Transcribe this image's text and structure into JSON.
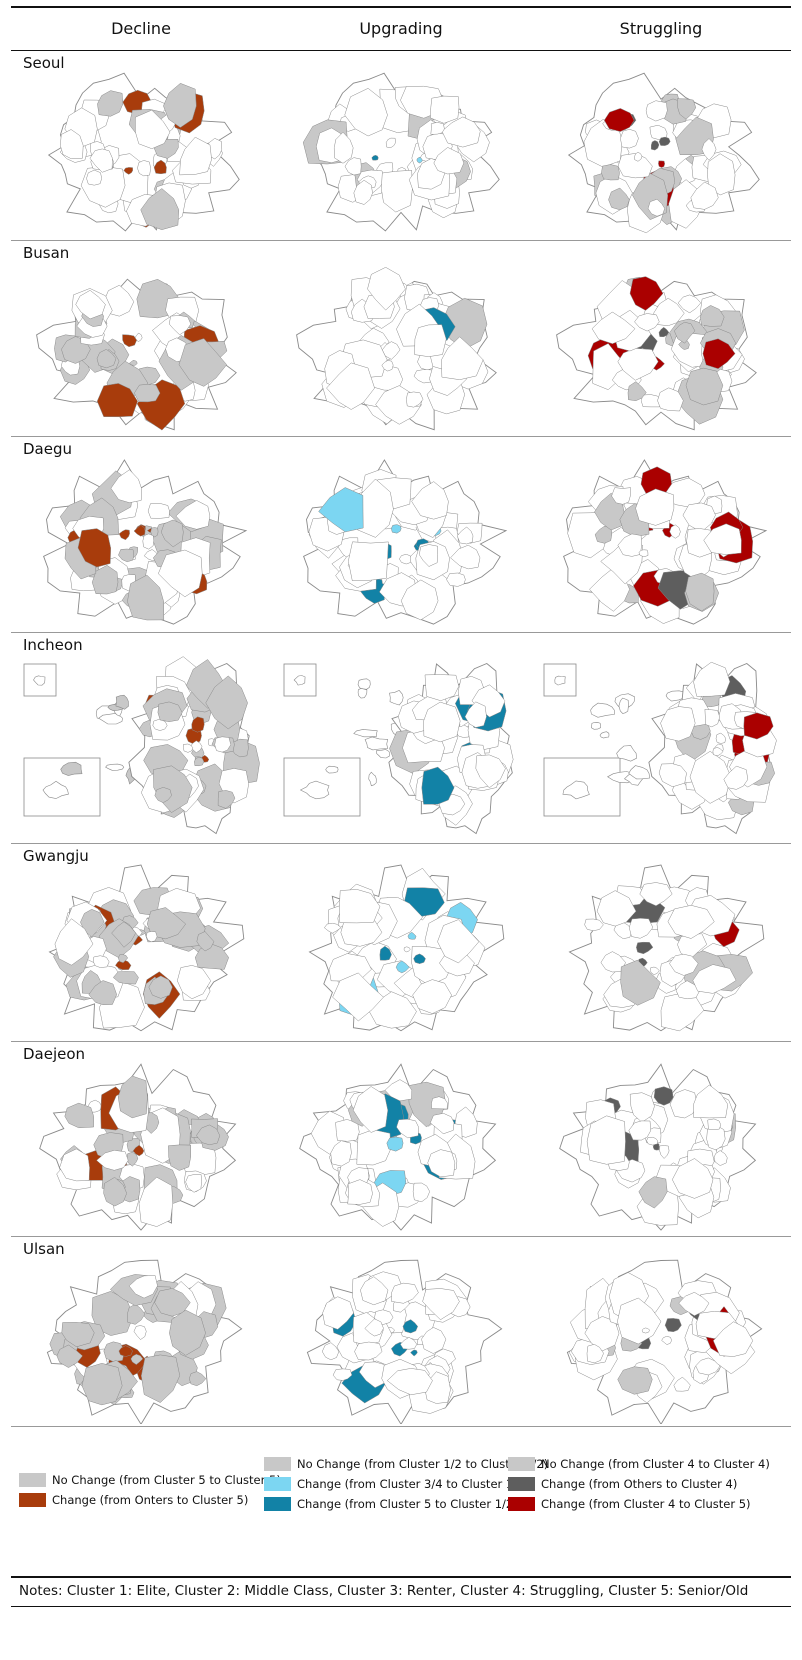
{
  "headers": [
    "Decline",
    "Upgrading",
    "Struggling"
  ],
  "cities": [
    "Seoul",
    "Busan",
    "Daegu",
    "Incheon",
    "Gwangju",
    "Daejeon",
    "Ulsan"
  ],
  "colors": {
    "gray": "#c8c8c8",
    "dark_gray": "#5e5e5e",
    "brown": "#a83c0c",
    "light_blue": "#7cd6f2",
    "teal": "#1282a6",
    "red": "#aa0000",
    "outline": "#8a8a8a"
  },
  "legend": {
    "decline": [
      {
        "label": "No Change (from Cluster 5 to Cluster 5)",
        "color": "#c8c8c8"
      },
      {
        "label": "Change (from Onters to Cluster 5)",
        "color": "#a83c0c"
      }
    ],
    "upgrading": [
      {
        "label": "No Change (from Cluster 1/2 to Cluster 1/2)",
        "color": "#c8c8c8"
      },
      {
        "label": "Change (from Cluster 3/4 to Cluster 1/2)",
        "color": "#7cd6f2"
      },
      {
        "label": "Change (from Cluster 5 to Cluster 1/2)",
        "color": "#1282a6"
      }
    ],
    "struggling": [
      {
        "label": "No Change (from Cluster 4 to Cluster 4)",
        "color": "#c8c8c8"
      },
      {
        "label": "Change (from Others to Cluster 4)",
        "color": "#5e5e5e"
      },
      {
        "label": "Change (from Cluster 4 to Cluster 5)",
        "color": "#aa0000"
      }
    ]
  },
  "notes": "Notes: Cluster 1: Elite, Cluster 2: Middle Class, Cluster 3: Renter, Cluster 4: Struggling, Cluster 5: Senior/Old"
}
